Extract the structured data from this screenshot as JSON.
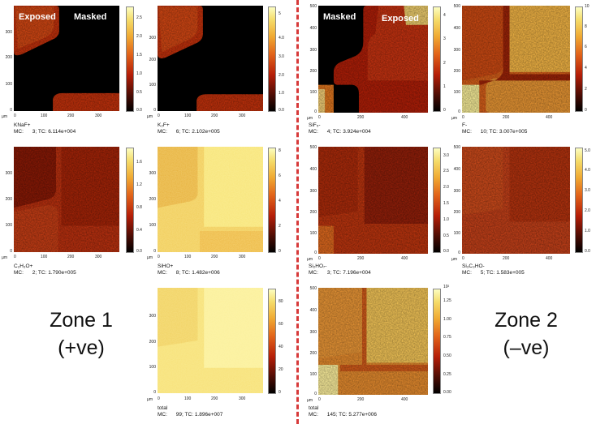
{
  "colors": {
    "divider": "#d73a3a",
    "colormap": [
      "#000000",
      "#4a0c04",
      "#b51e08",
      "#e2641a",
      "#f0aa33",
      "#f5dc6a",
      "#fcfdc0"
    ]
  },
  "zone1": {
    "label": "Zone 1",
    "sign": "(+ve)"
  },
  "zone2": {
    "label": "Zone 2",
    "sign": "(–ve)"
  },
  "axis_unit": "µm",
  "panels": [
    {
      "id": "p1",
      "overlay_left": "Exposed",
      "overlay_right": "Masked",
      "yticks": [
        "300",
        "200",
        "100",
        "0"
      ],
      "xticks": [
        "0",
        "100",
        "200",
        "300"
      ],
      "cbar": [
        "2.5",
        "2.0",
        "1.5",
        "1.0",
        "0.5",
        "0.0"
      ],
      "species": "KNaF+",
      "mc": "MC:",
      "mc_value": "3;",
      "tc_label": "TC:",
      "tc_value": "6.114e+004"
    },
    {
      "id": "p2",
      "yticks": [
        "300",
        "200",
        "100",
        "0"
      ],
      "xticks": [
        "0",
        "100",
        "200",
        "300"
      ],
      "cbar": [
        "5",
        "4.0",
        "3.0",
        "2.0",
        "1.0",
        "0.0"
      ],
      "species": "K₂F+",
      "mc": "MC:",
      "mc_value": "6;",
      "tc_label": "TC:",
      "tc_value": "2.102e+005"
    },
    {
      "id": "p3",
      "overlay_left": "Masked",
      "overlay_right": "Exposed",
      "yticks": [
        "500",
        "400",
        "300",
        "200",
        "100",
        "0"
      ],
      "xticks": [
        "0",
        "200",
        "400"
      ],
      "cbar": [
        "4",
        "3",
        "2",
        "1",
        "0"
      ],
      "species": "SiF₅-",
      "mc": "MC:",
      "mc_value": "4;",
      "tc_label": "TC:",
      "tc_value": "3.924e+004"
    },
    {
      "id": "p4",
      "yticks": [
        "500",
        "400",
        "300",
        "200",
        "100",
        "0"
      ],
      "xticks": [
        "0",
        "200",
        "400"
      ],
      "cbar": [
        "10",
        "8",
        "6",
        "4",
        "2",
        "0"
      ],
      "species": "F-",
      "mc": "MC:",
      "mc_value": "10;",
      "tc_label": "TC:",
      "tc_value": "3.007e+005"
    },
    {
      "id": "p5",
      "yticks": [
        "300",
        "200",
        "100",
        "0"
      ],
      "xticks": [
        "0",
        "100",
        "200",
        "300"
      ],
      "cbar": [
        "1.6",
        "1.2",
        "0.8",
        "0.4",
        "0.0"
      ],
      "species": "C₂H₃O+",
      "mc": "MC:",
      "mc_value": "2;",
      "tc_label": "TC:",
      "tc_value": "1.790e+005"
    },
    {
      "id": "p6",
      "yticks": [
        "300",
        "200",
        "100",
        "0"
      ],
      "xticks": [
        "0",
        "100",
        "200",
        "300"
      ],
      "cbar": [
        "8",
        "6",
        "4",
        "2",
        "0"
      ],
      "species": "SiHO+",
      "mc": "MC:",
      "mc_value": "8;",
      "tc_label": "TC:",
      "tc_value": "1.482e+006"
    },
    {
      "id": "p7",
      "yticks": [
        "500",
        "400",
        "300",
        "200",
        "100",
        "0"
      ],
      "xticks": [
        "0",
        "200",
        "400"
      ],
      "cbar": [
        "3.0",
        "2.5",
        "2.0",
        "1.5",
        "1.0",
        "0.5",
        "0.0"
      ],
      "species": "Si₂HO₇-",
      "mc": "MC:",
      "mc_value": "3;",
      "tc_label": "TC:",
      "tc_value": "7.196e+004"
    },
    {
      "id": "p8",
      "yticks": [
        "500",
        "400",
        "300",
        "200",
        "100",
        "0"
      ],
      "xticks": [
        "0",
        "200",
        "400"
      ],
      "cbar": [
        "5.0",
        "4.0",
        "3.0",
        "2.0",
        "1.0",
        "0.0"
      ],
      "species": "Si₃C₃HO-",
      "mc": "MC:",
      "mc_value": "5;",
      "tc_label": "TC:",
      "tc_value": "1.583e+005"
    },
    {
      "id": "p9",
      "yticks": [
        "300",
        "200",
        "100",
        "0"
      ],
      "xticks": [
        "0",
        "100",
        "200",
        "300"
      ],
      "cbar": [
        "80",
        "60",
        "40",
        "20",
        "0"
      ],
      "species": "total",
      "mc": "MC:",
      "mc_value": "99;",
      "tc_label": "TC:",
      "tc_value": "1.896e+007"
    },
    {
      "id": "p10",
      "yticks": [
        "500",
        "400",
        "300",
        "200",
        "100",
        "0"
      ],
      "xticks": [
        "0",
        "200",
        "400"
      ],
      "cbar_exp": "10²",
      "cbar": [
        "1.25",
        "1.00",
        "0.75",
        "0.50",
        "0.25",
        "0.00"
      ],
      "species": "total",
      "mc": "MC:",
      "mc_value": "145;",
      "tc_label": "TC:",
      "tc_value": "5.277e+006"
    }
  ]
}
